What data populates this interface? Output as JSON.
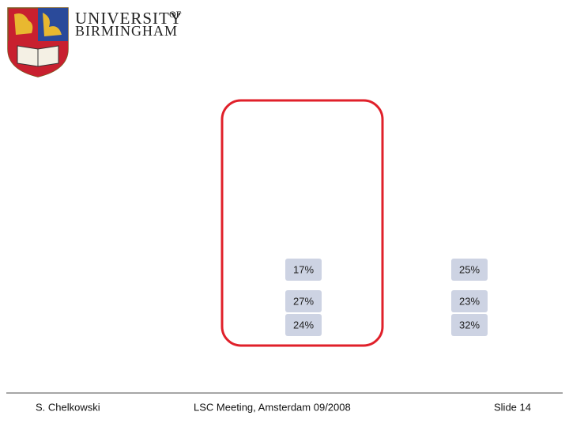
{
  "header": {
    "university": "UNIVERSITY",
    "of": "OF",
    "city": "BIRMINGHAM"
  },
  "table": {
    "rows": [
      [
        "17%",
        "25%"
      ],
      [
        "27%",
        "23%"
      ],
      [
        "24%",
        "32%"
      ]
    ]
  },
  "footer": {
    "author": "S. Chelkowski",
    "event": "LSC Meeting, Amsterdam 09/2008",
    "slide": "Slide 14"
  }
}
